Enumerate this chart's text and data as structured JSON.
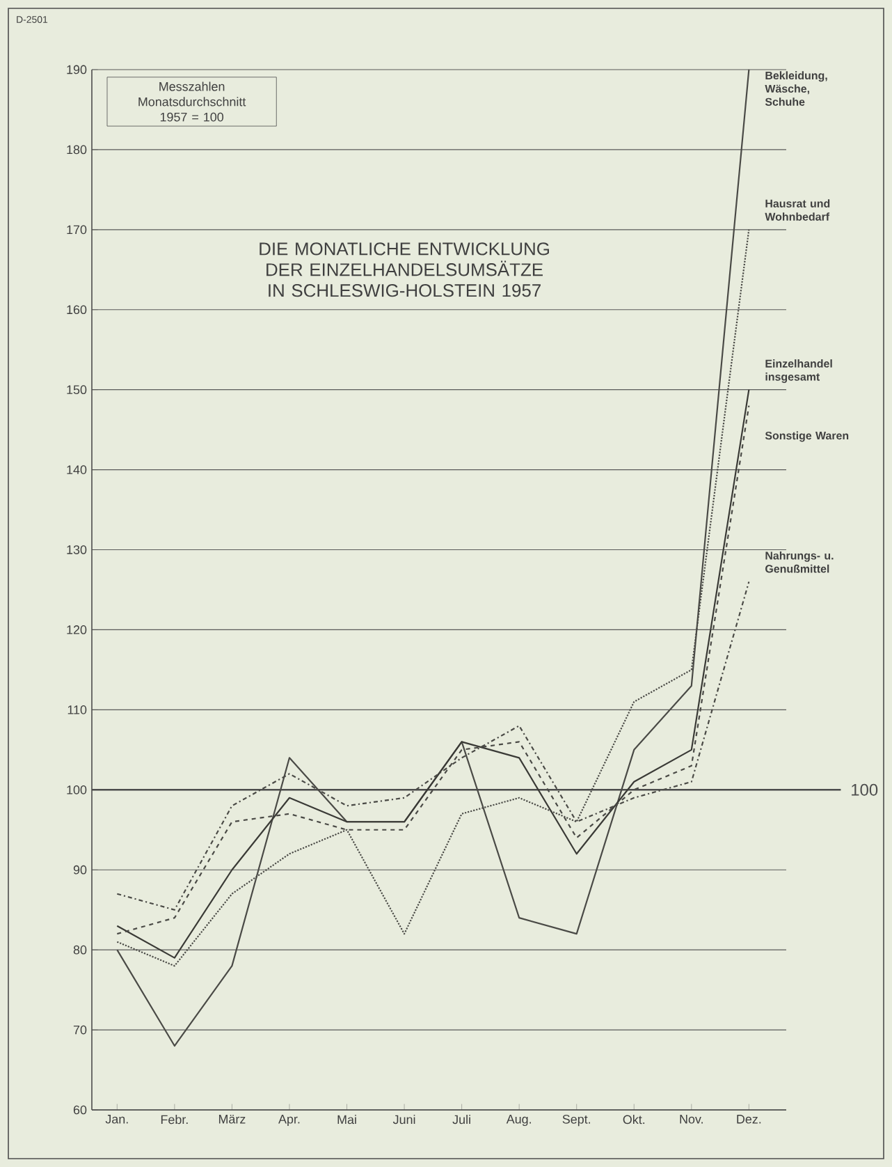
{
  "chart_data": {
    "type": "line",
    "title": "DIE MONATLICHE ENTWICKLUNG DER EINZELHANDELSUMSÄTZE IN SCHLESWIG-HOLSTEIN 1957",
    "subtitle": "Messzahlen Monatsdurchschnitt 1957 = 100",
    "annotations": [
      "D-2501"
    ],
    "categories": [
      "Jan.",
      "Febr.",
      "März",
      "Apr.",
      "Mai",
      "Juni",
      "Juli",
      "Aug.",
      "Sept.",
      "Okt.",
      "Nov.",
      "Dez."
    ],
    "series": [
      {
        "name": "Bekleidung, Wäsche, Schuhe",
        "color": "#4a4a46",
        "line_style": "solid",
        "values": [
          80,
          68,
          78,
          104,
          96,
          96,
          106,
          84,
          82,
          105,
          113,
          190
        ]
      },
      {
        "name": "Hausrat und Wohnbedarf",
        "color": "#4a4a46",
        "line_style": "dotted",
        "values": [
          81,
          78,
          87,
          92,
          95,
          82,
          97,
          99,
          96,
          111,
          115,
          170
        ]
      },
      {
        "name": "Einzelhandel insgesamt",
        "color": "#3a3a36",
        "line_style": "solid",
        "values": [
          83,
          79,
          90,
          99,
          96,
          96,
          106,
          104,
          92,
          101,
          105,
          150
        ]
      },
      {
        "name": "Sonstige Waren",
        "color": "#4a4a46",
        "line_style": "dashed",
        "values": [
          82,
          84,
          96,
          97,
          95,
          95,
          105,
          106,
          94,
          100,
          103,
          148
        ]
      },
      {
        "name": "Nahrungs- u. Genußmittel",
        "color": "#4a4a46",
        "line_style": "dashdot",
        "values": [
          87,
          85,
          98,
          102,
          98,
          99,
          104,
          108,
          96,
          99,
          101,
          126
        ]
      }
    ],
    "ylim": [
      60,
      190
    ],
    "yticks": [
      60,
      70,
      80,
      90,
      100,
      110,
      120,
      130,
      140,
      150,
      160,
      170,
      180,
      190
    ],
    "grid": "y",
    "ref_lines": [
      {
        "axis": "y",
        "value": 100,
        "label": "100"
      }
    ]
  }
}
